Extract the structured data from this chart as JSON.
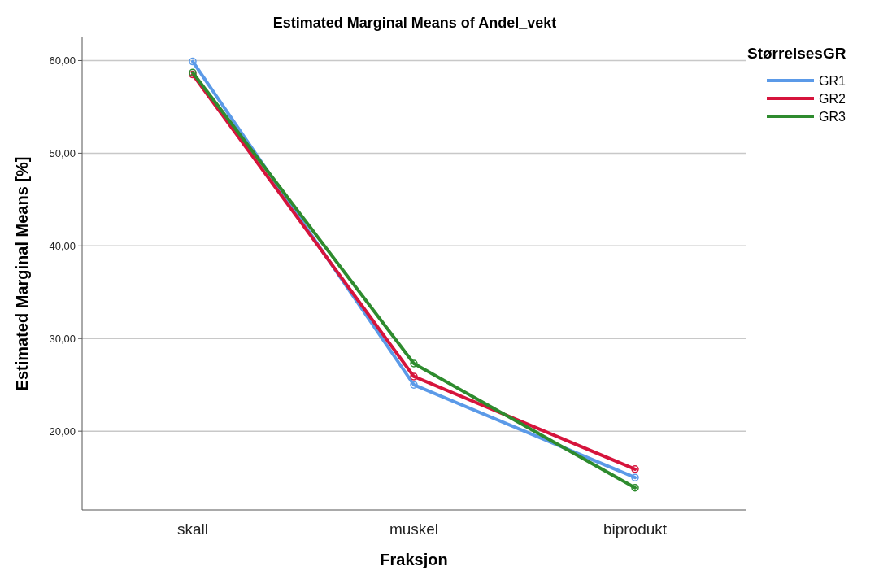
{
  "chart_data": {
    "type": "line",
    "title": "Estimated Marginal Means of Andel_vekt",
    "xlabel": "Fraksjon",
    "ylabel": "Estimated Marginal Means [%]",
    "legend_title": "StørrelsesGR",
    "categories": [
      "skall",
      "muskel",
      "biprodukt"
    ],
    "series": [
      {
        "name": "GR1",
        "color": "#5b9ae8",
        "values": [
          59.9,
          25.0,
          15.0
        ]
      },
      {
        "name": "GR2",
        "color": "#d6143c",
        "values": [
          58.5,
          25.9,
          15.9
        ]
      },
      {
        "name": "GR3",
        "color": "#2e8b2e",
        "values": [
          58.7,
          27.3,
          13.9
        ]
      }
    ],
    "ylim": [
      11.5,
      62.5
    ],
    "yticks": [
      {
        "value": 20,
        "label": "20,00"
      },
      {
        "value": 30,
        "label": "30,00"
      },
      {
        "value": 40,
        "label": "40,00"
      },
      {
        "value": 50,
        "label": "50,00"
      },
      {
        "value": 60,
        "label": "60,00"
      }
    ],
    "grid": "y",
    "legend": "top right",
    "marker": "circle",
    "line_style": "solid"
  }
}
